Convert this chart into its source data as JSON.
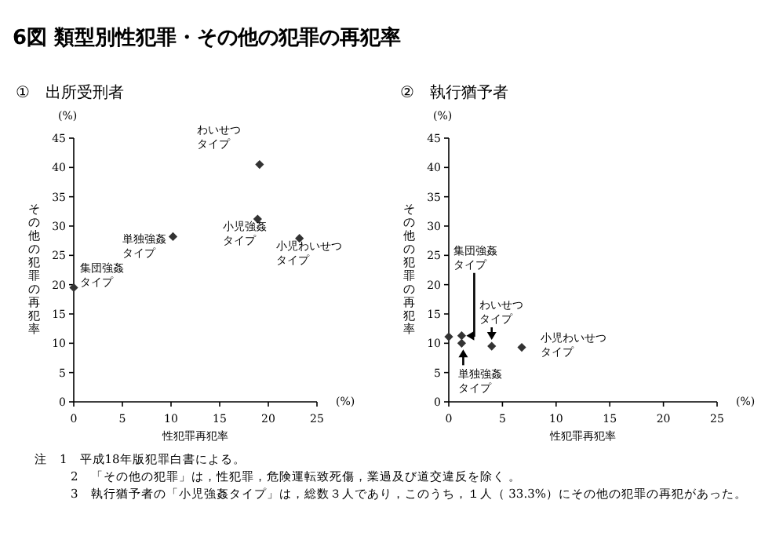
{
  "chart_data": [
    {
      "type": "scatter",
      "title": "6図 類型別性犯罪・その他の犯罪の再犯率",
      "subtitle": "①　出所受刑者",
      "xlabel": "性犯罪再犯率",
      "ylabel": "その他の犯罪の再犯率",
      "x": [
        0,
        10.2,
        19.1,
        18.9,
        23.2
      ],
      "values": [
        19.5,
        28.2,
        40.5,
        31.2,
        27.9
      ],
      "color": "#333333",
      "marker": "diamond",
      "grid": false,
      "xlim": [
        0,
        25
      ],
      "xticks": [
        0,
        5,
        10,
        15,
        20,
        25
      ],
      "ylim": [
        0,
        45
      ],
      "yticks": [
        0,
        5,
        10,
        15,
        20,
        25,
        30,
        35,
        40,
        45
      ],
      "annotations": [
        {
          "text": "集団強姦タイプ",
          "x": 0,
          "y": 19.5
        },
        {
          "text": "単独強姦タイプ",
          "x": 10.2,
          "y": 28.2
        },
        {
          "text": "わいせつタイプ",
          "x": 19.1,
          "y": 40.5
        },
        {
          "text": "小児強姦タイプ",
          "x": 18.9,
          "y": 31.2
        },
        {
          "text": "小児わいせつタイプ",
          "x": 23.2,
          "y": 27.9
        },
        "(%)",
        "(%)",
        "注　1　平成18年版犯罪白書による。",
        "2　「その他の犯罪」は，性犯罪，危険運転致死傷，業過及び道交違反を除く 。",
        "3　執行猶予者の「小児強姦タイプ」は，総数３人であり，このうち，１人（ 33.3%）にその他の犯罪の再犯があった。"
      ]
    },
    {
      "type": "scatter",
      "subtitle": "②　執行猶予者",
      "xlabel": "性犯罪再犯率",
      "ylabel": "その他の犯罪の再犯率",
      "x": [
        0,
        1.2,
        1.2,
        4.0,
        6.8
      ],
      "values": [
        11.1,
        11.3,
        10.0,
        9.5,
        9.3
      ],
      "color": "#333333",
      "marker": "diamond",
      "grid": false,
      "xlim": [
        0,
        25
      ],
      "xticks": [
        0,
        5,
        10,
        15,
        20,
        25
      ],
      "ylim": [
        0,
        45
      ],
      "yticks": [
        0,
        5,
        10,
        15,
        20,
        25,
        30,
        35,
        40,
        45
      ],
      "annotations": [
        {
          "text": "集団強姦タイプ",
          "x": 1.2,
          "y": 11.3
        },
        {
          "text": "単独強姦タイプ",
          "x": 1.2,
          "y": 10.0
        },
        {
          "text": "わいせつタイプ",
          "x": 4.0,
          "y": 9.5
        },
        {
          "text": "小児わいせつタイプ",
          "x": 6.8,
          "y": 9.3
        },
        "(%)",
        "(%)"
      ]
    }
  ]
}
